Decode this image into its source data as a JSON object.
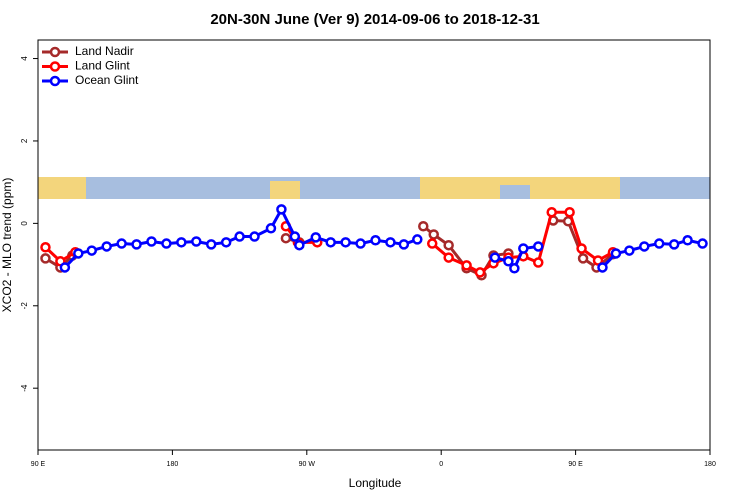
{
  "chart_data": {
    "type": "line",
    "title": "20N-30N June (Ver 9)   2014-09-06 to 2018-12-31",
    "xlabel": "Longitude",
    "ylabel": "XCO2 - MLO trend (ppm)",
    "xlim": [
      90,
      540
    ],
    "ylim": [
      -5.5,
      4.45
    ],
    "xticks": [
      {
        "value": 90,
        "label": "90 E"
      },
      {
        "value": 180,
        "label": "180"
      },
      {
        "value": 270,
        "label": "90 W"
      },
      {
        "value": 360,
        "label": "0"
      },
      {
        "value": 450,
        "label": "90 E"
      },
      {
        "value": 540,
        "label": "180"
      }
    ],
    "yticks": [
      -4,
      -2,
      0,
      2,
      4
    ],
    "legend": "top-left",
    "series": [
      {
        "name": "Land Nadir",
        "color": "#a52a2a",
        "x": [
          95,
          105,
          113,
          null,
          256,
          265,
          null,
          348,
          355,
          365,
          377,
          387,
          395,
          405,
          null,
          435,
          445,
          455,
          464,
          475
        ],
        "values": [
          -0.85,
          -1.07,
          -0.78,
          null,
          -0.36,
          -0.46,
          null,
          -0.07,
          -0.27,
          -0.53,
          -1.09,
          -1.26,
          -0.78,
          -0.73,
          null,
          0.07,
          0.05,
          -0.85,
          -1.07,
          -0.75
        ]
      },
      {
        "name": "Land Glint",
        "color": "#ff0000",
        "x": [
          95,
          105,
          115,
          null,
          256,
          264,
          277,
          null,
          354,
          365,
          377,
          386,
          395,
          405,
          415,
          425,
          434,
          446,
          454,
          465,
          475
        ],
        "values": [
          -0.58,
          -0.92,
          -0.7,
          null,
          -0.07,
          -0.46,
          -0.46,
          null,
          -0.49,
          -0.83,
          -1.02,
          -1.19,
          -0.97,
          -0.83,
          -0.8,
          -0.95,
          0.27,
          0.27,
          -0.61,
          -0.9,
          -0.7
        ]
      },
      {
        "name": "Ocean Glint",
        "color": "#0000ff",
        "x": [
          108,
          117,
          126,
          136,
          146,
          156,
          166,
          176,
          186,
          196,
          206,
          216,
          225,
          235,
          246,
          253,
          262,
          265,
          276,
          286,
          296,
          306,
          316,
          326,
          335,
          344,
          null,
          396,
          405,
          409,
          415,
          425,
          null,
          468,
          477,
          486,
          496,
          506,
          516,
          525,
          535
        ],
        "values": [
          -1.07,
          -0.73,
          -0.66,
          -0.56,
          -0.49,
          -0.51,
          -0.44,
          -0.49,
          -0.46,
          -0.44,
          -0.51,
          -0.46,
          -0.32,
          -0.32,
          -0.12,
          0.34,
          -0.32,
          -0.53,
          -0.34,
          -0.46,
          -0.46,
          -0.49,
          -0.41,
          -0.46,
          -0.51,
          -0.39,
          null,
          -0.83,
          -0.92,
          -1.09,
          -0.61,
          -0.56,
          null,
          -1.07,
          -0.73,
          -0.66,
          -0.56,
          -0.49,
          -0.51,
          -0.41,
          -0.49
        ]
      }
    ]
  }
}
